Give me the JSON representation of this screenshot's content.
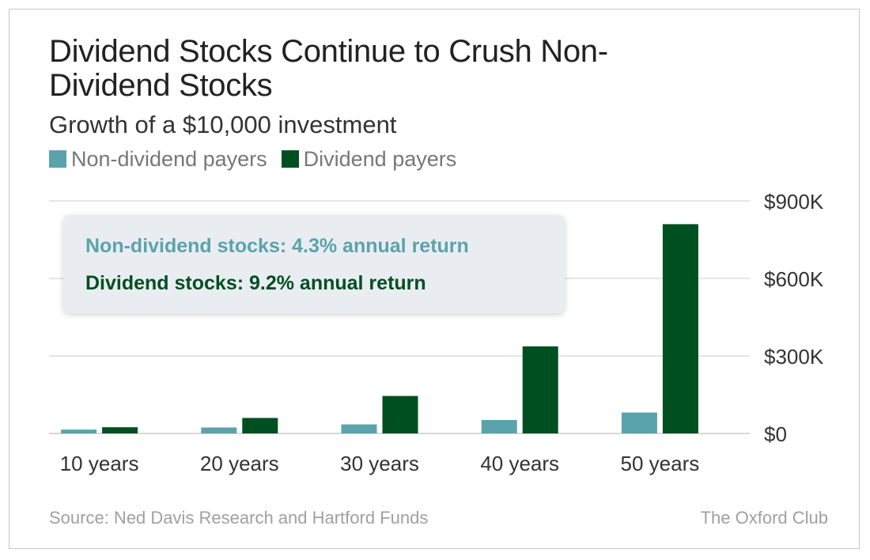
{
  "colors": {
    "non_dividend": "#5ba3ac",
    "dividend": "#004f21",
    "grid": "#cccccc",
    "text": "#333333"
  },
  "header": {
    "title": "Dividend Stocks Continue to Crush Non-Dividend Stocks",
    "subtitle": "Growth of a $10,000 investment"
  },
  "legend": {
    "items": [
      {
        "label": "Non-dividend payers",
        "color": "#5ba3ac"
      },
      {
        "label": "Dividend payers",
        "color": "#004f21"
      }
    ]
  },
  "callout": {
    "line1": "Non-dividend stocks: 4.3% annual return",
    "line2": "Dividend stocks: 9.2% annual return"
  },
  "footer": {
    "source": "Source: Ned Davis Research and Hartford Funds",
    "brand": "The Oxford Club"
  },
  "chart_data": {
    "type": "bar",
    "categories": [
      "10 years",
      "20 years",
      "30 years",
      "40 years",
      "50 years"
    ],
    "series": [
      {
        "name": "Non-dividend payers",
        "values": [
          15000,
          23000,
          35000,
          52000,
          81000
        ]
      },
      {
        "name": "Dividend payers",
        "values": [
          24000,
          60000,
          145000,
          337000,
          810000
        ]
      }
    ],
    "ylim": [
      0,
      900000
    ],
    "yticks": [
      0,
      300000,
      600000,
      900000
    ],
    "ytick_labels": [
      "$0",
      "$300K",
      "$600K",
      "$900K"
    ],
    "y_axis_side": "right",
    "grid": true,
    "legend_position": "top-left"
  }
}
